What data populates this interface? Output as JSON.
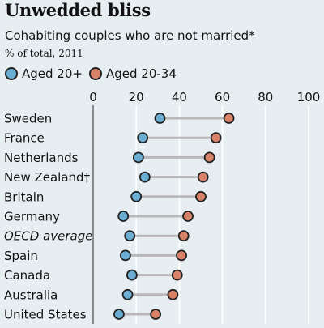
{
  "chart_data": {
    "type": "scatter",
    "title": "Unwedded bliss",
    "subtitle": "Cohabiting couples who are not married*",
    "units": "% of total, 2011",
    "xlim": [
      0,
      100
    ],
    "xticks": [
      "0",
      "20",
      "40",
      "60",
      "80",
      "100"
    ],
    "grid": true,
    "legend_position": "top-left",
    "categories": [
      "Sweden",
      "France",
      "Netherlands",
      "New Zealand†",
      "Britain",
      "Germany",
      "OECD average",
      "Spain",
      "Canada",
      "Australia",
      "United States"
    ],
    "italic_categories": [
      "OECD average"
    ],
    "series": [
      {
        "name": "Aged 20+",
        "color": "#6aaed3",
        "values": [
          31,
          23,
          21,
          24,
          20,
          14,
          17,
          15,
          18,
          16,
          12
        ]
      },
      {
        "name": "Aged 20-34",
        "color": "#d9826a",
        "values": [
          63,
          57,
          54,
          51,
          50,
          44,
          42,
          41,
          39,
          37,
          29
        ]
      }
    ],
    "connector_color": "#b8b8b8"
  }
}
